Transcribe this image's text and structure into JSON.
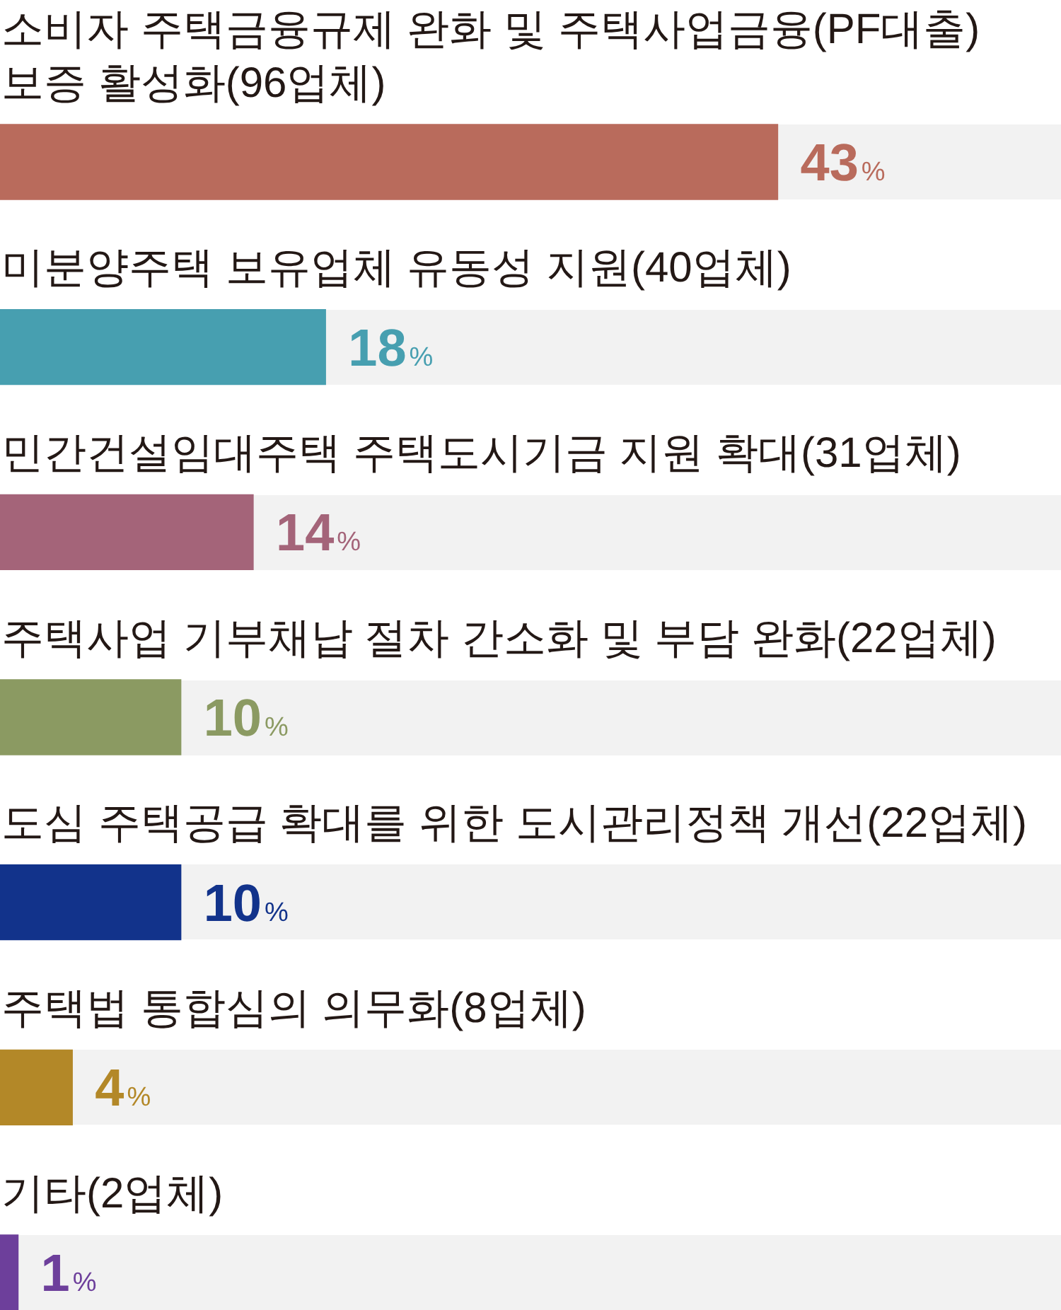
{
  "chart_data": {
    "type": "bar",
    "orientation": "horizontal",
    "categories": [
      "소비자 주택금융규제 완화 및 주택사업금융(PF대출)\n보증 활성화(96업체)",
      "미분양주택 보유업체 유동성 지원(40업체)",
      "민간건설임대주택 주택도시기금 지원 확대(31업체)",
      "주택사업 기부채납 절차 간소화 및 부담 완화(22업체)",
      "도심 주택공급 확대를 위한 도시관리정책 개선(22업체)",
      "주택법 통합심의 의무화(8업체)",
      "기타(2업체)"
    ],
    "values": [
      43,
      18,
      14,
      10,
      10,
      4,
      1
    ],
    "colors": [
      "#b96b5c",
      "#479fb0",
      "#a46479",
      "#8b9a62",
      "#12338b",
      "#b38828",
      "#6d3f9b"
    ],
    "value_labels": [
      "43%",
      "18%",
      "14%",
      "10%",
      "10%",
      "4%",
      "1%"
    ],
    "tick_labels": "y"
  }
}
